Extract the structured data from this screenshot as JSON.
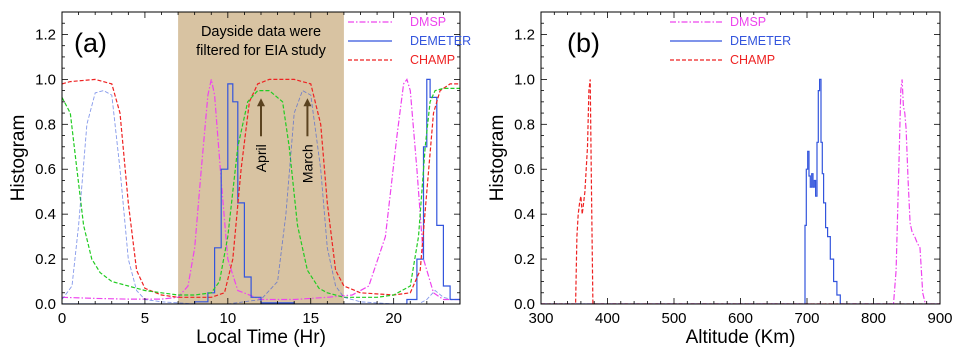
{
  "colors": {
    "dmsp": "#ee44ee",
    "demeter": "#3355dd",
    "champ": "#ee2222",
    "extra": "#22cc22",
    "shade": "#d8c3a2"
  },
  "chart_data": [
    {
      "type": "line",
      "panel_label": "(a)",
      "xlabel": "Local Time (Hr)",
      "ylabel": "Histogram",
      "xlim": [
        0,
        24
      ],
      "ylim": [
        0,
        1.3
      ],
      "xticks": [
        0,
        5,
        10,
        15,
        20
      ],
      "yticks": [
        0.0,
        0.2,
        0.4,
        0.6,
        0.8,
        1.0,
        1.2
      ],
      "ytick_labels": [
        "0.0",
        "0.2",
        "0.4",
        "0.6",
        "0.8",
        "1.0",
        "1.2"
      ],
      "shaded_region": {
        "x": [
          7,
          17
        ],
        "text": [
          "Dayside data were",
          "filtered for EIA study"
        ]
      },
      "annotations": [
        {
          "text": "April",
          "x": 12.0,
          "y": 0.72
        },
        {
          "text": "March",
          "x": 14.8,
          "y": 0.72
        }
      ],
      "legend": [
        "DMSP",
        "DEMETER",
        "CHAMP"
      ],
      "legend_position": "top-right",
      "series": [
        {
          "name": "DMSP",
          "key": "dmsp",
          "dash": "dashdot",
          "x": [
            0,
            2,
            4,
            6,
            7,
            7.6,
            8,
            8.4,
            8.8,
            9,
            9.2,
            9.6,
            10,
            10.6,
            12,
            14,
            16,
            17.5,
            18.5,
            19.5,
            20.2,
            20.6,
            20.8,
            21,
            21.4,
            21.8,
            22.4,
            23,
            24
          ],
          "y": [
            0.03,
            0.025,
            0.022,
            0.022,
            0.03,
            0.08,
            0.25,
            0.6,
            0.93,
            1.0,
            0.93,
            0.55,
            0.2,
            0.06,
            0.02,
            0.02,
            0.03,
            0.04,
            0.08,
            0.3,
            0.75,
            0.98,
            1.0,
            0.95,
            0.6,
            0.2,
            0.05,
            0.02,
            0.02
          ]
        },
        {
          "name": "DEMETER",
          "key": "demeter",
          "dash": "solid",
          "step": true,
          "x": [
            0,
            6,
            8,
            8.8,
            9.2,
            9.6,
            10,
            10.3,
            10.6,
            11,
            11.4,
            12,
            14,
            19,
            20.8,
            21.4,
            21.8,
            22,
            22.2,
            22.6,
            23,
            23.4,
            24
          ],
          "y": [
            0.0,
            0.0,
            0.01,
            0.05,
            0.25,
            0.6,
            0.98,
            0.9,
            0.45,
            0.12,
            0.03,
            0.005,
            0.0,
            0.0,
            0.02,
            0.2,
            0.7,
            1.0,
            0.92,
            0.35,
            0.08,
            0.02,
            0.0
          ]
        },
        {
          "name": "CHAMP",
          "key": "champ",
          "dash": "dashed",
          "x": [
            0,
            0.5,
            2,
            3,
            3.5,
            4,
            4.5,
            5,
            6,
            7,
            8,
            9,
            9.8,
            10.3,
            10.8,
            11.3,
            11.8,
            12.5,
            14,
            15,
            15.6,
            16,
            16.5,
            17,
            18,
            20,
            21,
            21.6,
            22,
            22.4,
            22.8,
            23.4,
            24
          ],
          "y": [
            0.98,
            0.99,
            1.0,
            0.98,
            0.85,
            0.45,
            0.15,
            0.07,
            0.04,
            0.03,
            0.03,
            0.03,
            0.05,
            0.2,
            0.6,
            0.9,
            0.98,
            1.0,
            1.0,
            0.98,
            0.8,
            0.45,
            0.15,
            0.08,
            0.05,
            0.04,
            0.05,
            0.15,
            0.5,
            0.85,
            0.95,
            0.98,
            0.98
          ]
        },
        {
          "name": "",
          "key": "extra",
          "dash": "dashed",
          "x": [
            0,
            0.5,
            0.9,
            1.3,
            1.8,
            2.3,
            3,
            4,
            5,
            6,
            7,
            8,
            9,
            9.5,
            10,
            10.6,
            11.2,
            11.8,
            12.5,
            13.3,
            13.7,
            14.2,
            14.8,
            15.5,
            16,
            17,
            18,
            19,
            20,
            21,
            21.5,
            21.9,
            22.2,
            22.5,
            23,
            23.5,
            24
          ],
          "y": [
            0.92,
            0.85,
            0.6,
            0.35,
            0.2,
            0.14,
            0.1,
            0.08,
            0.06,
            0.05,
            0.04,
            0.04,
            0.05,
            0.1,
            0.3,
            0.7,
            0.9,
            0.95,
            0.95,
            0.9,
            0.7,
            0.35,
            0.15,
            0.07,
            0.05,
            0.03,
            0.03,
            0.03,
            0.04,
            0.08,
            0.3,
            0.7,
            0.9,
            0.95,
            0.96,
            0.96,
            0.96
          ]
        },
        {
          "name": "",
          "key": "demeter",
          "dash": "dashed",
          "faint": true,
          "x": [
            0,
            0.6,
            1,
            1.5,
            2,
            2.5,
            3,
            3.5,
            4,
            4.5,
            5,
            6,
            8,
            10,
            12,
            13,
            13.5,
            14,
            14.5,
            15,
            15.6,
            16,
            16.5,
            17,
            18,
            20,
            21,
            21.5,
            22,
            22.5,
            23,
            23.5,
            24
          ],
          "y": [
            0.02,
            0.08,
            0.35,
            0.8,
            0.94,
            0.95,
            0.93,
            0.6,
            0.2,
            0.06,
            0.02,
            0.01,
            0.0,
            0.0,
            0.02,
            0.1,
            0.4,
            0.85,
            0.95,
            0.93,
            0.6,
            0.25,
            0.08,
            0.03,
            0.01,
            0.0,
            0.0,
            0.0,
            0.02,
            0.06,
            0.03,
            0.02,
            0.02
          ]
        }
      ]
    },
    {
      "type": "line",
      "panel_label": "(b)",
      "xlabel": "Altitude (Km)",
      "ylabel": "Histogram",
      "xlim": [
        300,
        900
      ],
      "ylim": [
        0,
        1.3
      ],
      "xticks": [
        300,
        400,
        500,
        600,
        700,
        800,
        900
      ],
      "yticks": [
        0.0,
        0.2,
        0.4,
        0.6,
        0.8,
        1.0,
        1.2
      ],
      "ytick_labels": [
        "0.0",
        "0.2",
        "0.4",
        "0.6",
        "0.8",
        "1.0",
        "1.2"
      ],
      "legend": [
        "DMSP",
        "DEMETER",
        "CHAMP"
      ],
      "legend_position": "top-center",
      "series": [
        {
          "name": "DMSP",
          "key": "dmsp",
          "dash": "dashdot",
          "x": [
            300,
            830,
            834,
            838,
            841,
            843,
            845,
            847,
            849,
            852,
            855,
            858,
            862,
            866,
            870,
            874,
            878,
            900
          ],
          "y": [
            0.0,
            0.0,
            0.15,
            0.6,
            0.95,
            1.0,
            0.88,
            0.85,
            0.78,
            0.55,
            0.36,
            0.32,
            0.3,
            0.27,
            0.25,
            0.05,
            0.0,
            0.0
          ]
        },
        {
          "name": "DEMETER",
          "key": "demeter",
          "dash": "solid",
          "step": true,
          "x": [
            300,
            695,
            697,
            699,
            701,
            703,
            705,
            707,
            709,
            711,
            713,
            715,
            717,
            719,
            721,
            723,
            725,
            728,
            731,
            735,
            740,
            745,
            750,
            900
          ],
          "y": [
            0.0,
            0.0,
            0.35,
            0.6,
            0.68,
            0.57,
            0.52,
            0.58,
            0.52,
            0.55,
            0.48,
            0.72,
            0.95,
            1.0,
            0.72,
            0.58,
            0.45,
            0.34,
            0.3,
            0.2,
            0.1,
            0.04,
            0.0,
            0.0
          ]
        },
        {
          "name": "CHAMP",
          "key": "champ",
          "dash": "dashed",
          "x": [
            300,
            352,
            354,
            356,
            358,
            360,
            362,
            364,
            366,
            368,
            370,
            372,
            374,
            376,
            378,
            900
          ],
          "y": [
            0.0,
            0.0,
            0.3,
            0.4,
            0.45,
            0.48,
            0.4,
            0.45,
            0.5,
            0.6,
            0.7,
            0.95,
            1.0,
            0.5,
            0.0,
            0.0
          ]
        }
      ]
    }
  ]
}
